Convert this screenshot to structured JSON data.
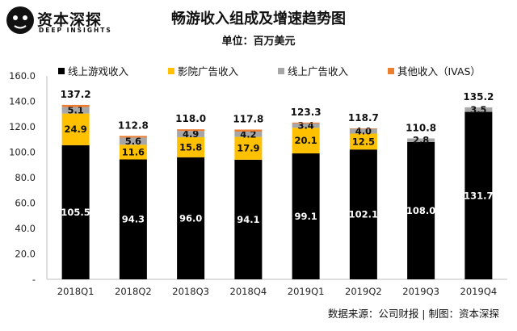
{
  "brand": {
    "name": "资本深探",
    "tagline": "DEEP INSIGHTS"
  },
  "chart_data": {
    "type": "bar",
    "stacked": true,
    "title": "畅游收入组成及增速趋势图",
    "unit": "单位：百万美元",
    "categories": [
      "2018Q1",
      "2018Q2",
      "2018Q3",
      "2018Q4",
      "2019Q1",
      "2019Q2",
      "2019Q3",
      "2019Q4"
    ],
    "series": [
      {
        "name": "线上游戏收入",
        "color": "#000000",
        "label_color": "#ffffff",
        "values": [
          105.5,
          94.3,
          96.0,
          94.1,
          99.1,
          102.1,
          108.0,
          131.7
        ],
        "labels": [
          "105.5",
          "94.3",
          "96.0",
          "94.1",
          "99.1",
          "102.1",
          "108.0",
          "131.7"
        ]
      },
      {
        "name": "影院广告收入",
        "color": "#ffc000",
        "label_color": "#111111",
        "values": [
          24.9,
          11.6,
          15.8,
          17.9,
          20.1,
          12.5,
          0,
          0
        ],
        "labels": [
          "24.9",
          "11.6",
          "15.8",
          "17.9",
          "20.1",
          "12.5",
          "",
          ""
        ]
      },
      {
        "name": "线上广告收入",
        "color": "#a6a6a6",
        "label_color": "#111111",
        "values": [
          5.1,
          5.6,
          4.9,
          4.2,
          3.4,
          4.0,
          2.8,
          3.5
        ],
        "labels": [
          "5.1",
          "5.6",
          "4.9",
          "4.2",
          "3.4",
          "4.0",
          "2.8",
          "3.5"
        ]
      },
      {
        "name": "其他收入（IVAS）",
        "color": "#ed7d31",
        "label_color": "#111111",
        "values": [
          1.7,
          1.3,
          1.3,
          1.6,
          0.7,
          0.1,
          0,
          0
        ],
        "labels": [
          "",
          "",
          "",
          "",
          "",
          "",
          "",
          ""
        ]
      }
    ],
    "totals": [
      137.2,
      112.8,
      118.0,
      117.8,
      123.3,
      118.7,
      110.8,
      135.2
    ],
    "total_labels": [
      "137.2",
      "112.8",
      "118.0",
      "117.8",
      "123.3",
      "118.7",
      "110.8",
      "135.2"
    ],
    "y_ticks": [
      "-",
      "20.0",
      "40.0",
      "60.0",
      "80.0",
      "100.0",
      "120.0",
      "140.0",
      "160.0"
    ],
    "ylim": [
      0,
      160
    ],
    "grid": false,
    "legend_position": "top"
  },
  "source": "数据来源：公司财报 | 制图：资本深探"
}
